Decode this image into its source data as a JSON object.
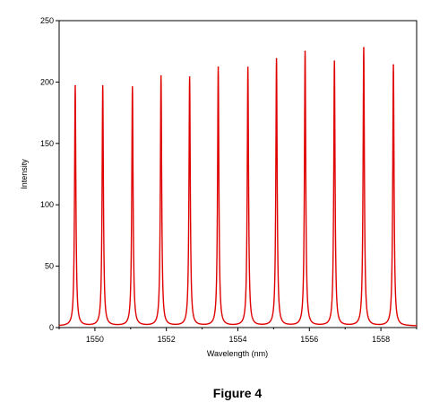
{
  "caption": "Figure 4",
  "chart_data": {
    "type": "line",
    "xlabel": "Wavelength (nm)",
    "ylabel": "Intensity",
    "xlim": [
      1549.0,
      1559.0
    ],
    "ylim": [
      0,
      250
    ],
    "x_ticks": [
      1550,
      1552,
      1554,
      1556,
      1558
    ],
    "y_ticks": [
      0,
      50,
      100,
      150,
      200,
      250
    ],
    "grid": false,
    "line_color": "#e00000",
    "series": [
      {
        "peaks": [
          {
            "x": 1549.45,
            "y": 197
          },
          {
            "x": 1550.22,
            "y": 197
          },
          {
            "x": 1551.05,
            "y": 196
          },
          {
            "x": 1551.85,
            "y": 205
          },
          {
            "x": 1552.65,
            "y": 204
          },
          {
            "x": 1553.45,
            "y": 212
          },
          {
            "x": 1554.28,
            "y": 212
          },
          {
            "x": 1555.08,
            "y": 219
          },
          {
            "x": 1555.88,
            "y": 225
          },
          {
            "x": 1556.7,
            "y": 217
          },
          {
            "x": 1557.52,
            "y": 228
          },
          {
            "x": 1558.35,
            "y": 214
          }
        ]
      }
    ]
  }
}
